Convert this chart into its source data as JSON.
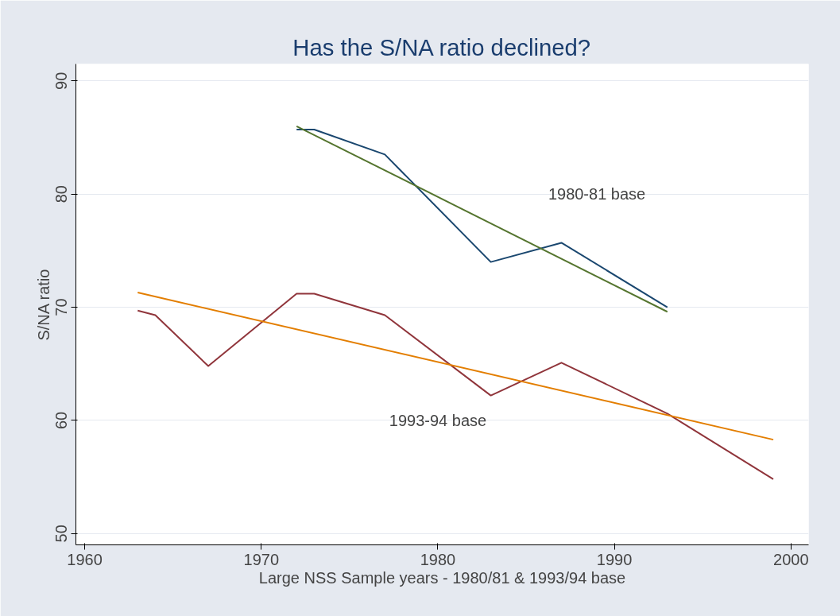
{
  "chart_data": {
    "type": "line",
    "title": "Has the S/NA ratio declined?",
    "xlabel": "Large NSS Sample years - 1980/81 & 1993/94 base",
    "ylabel": "S/NA ratio",
    "series": [
      {
        "color": "#1a476f",
        "x": [
          1972,
          1973,
          1977,
          1983,
          1987,
          1993
        ],
        "values": [
          85.7,
          85.7,
          83.5,
          74.0,
          75.7,
          70.0
        ]
      },
      {
        "color": "#55752f",
        "x": [
          1972,
          1993
        ],
        "values": [
          86.0,
          69.6
        ]
      },
      {
        "color": "#90353b",
        "x": [
          1963,
          1964,
          1967,
          1972,
          1973,
          1977,
          1983,
          1987,
          1993,
          1999
        ],
        "values": [
          69.7,
          69.3,
          64.8,
          71.2,
          71.2,
          69.3,
          62.2,
          65.1,
          60.6,
          54.8
        ]
      },
      {
        "color": "#e37e00",
        "x": [
          1963,
          1999
        ],
        "values": [
          71.3,
          58.3
        ]
      }
    ],
    "annotations": [
      "1980-81 base",
      "1993-94 base"
    ],
    "xlim": [
      1959.5,
      2001
    ],
    "ylim": [
      49,
      91.5
    ],
    "xticks": [
      1960,
      1970,
      1980,
      1990,
      2000
    ],
    "yticks": [
      50,
      60,
      70,
      80,
      90
    ],
    "grid": "y"
  }
}
